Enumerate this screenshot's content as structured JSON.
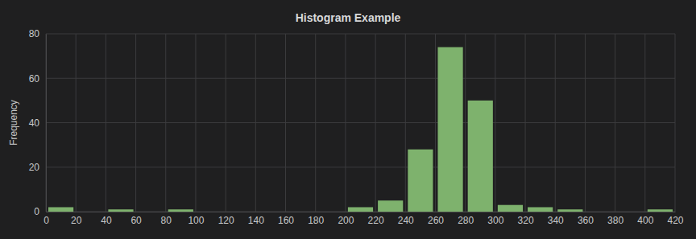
{
  "chart_data": {
    "type": "histogram",
    "title": "Histogram Example",
    "y_label": "Frequency",
    "bins": [
      0,
      20,
      40,
      60,
      80,
      100,
      120,
      140,
      160,
      180,
      200,
      220,
      240,
      260,
      280,
      300,
      320,
      340,
      360,
      380,
      400,
      420
    ],
    "values": [
      2,
      0,
      1,
      0,
      1,
      0,
      0,
      0,
      0,
      0,
      2,
      5,
      28,
      74,
      50,
      3,
      2,
      1,
      0,
      0,
      1
    ],
    "color": "#7eb26d",
    "xlim": [
      0,
      420
    ],
    "xticks": [
      0,
      20,
      40,
      60,
      80,
      100,
      120,
      140,
      160,
      180,
      200,
      220,
      240,
      260,
      280,
      300,
      320,
      340,
      360,
      380,
      400,
      420
    ],
    "ylim": [
      0,
      80
    ],
    "yticks": [
      0,
      20,
      40,
      60,
      80
    ],
    "grid": true
  }
}
